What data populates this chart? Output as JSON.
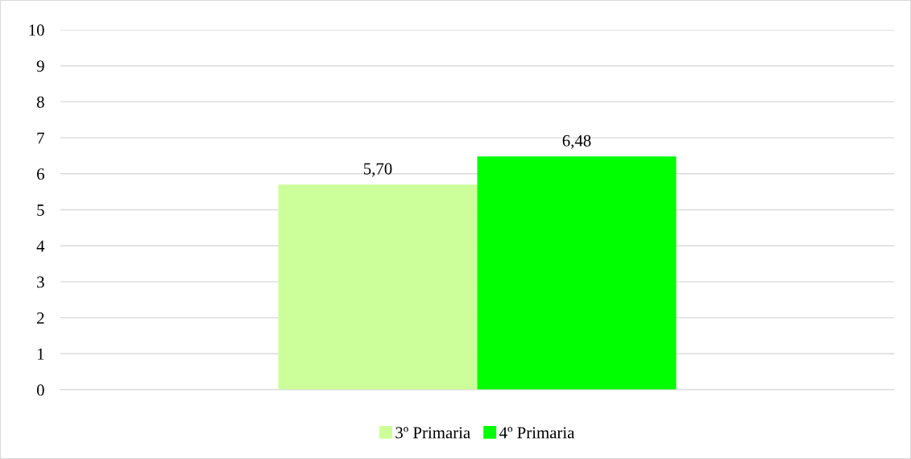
{
  "chart_data": {
    "type": "bar",
    "categories": [
      null
    ],
    "series": [
      {
        "name": "3º Primaria",
        "color": "#ccff99",
        "values": [
          5.7
        ],
        "value_labels": [
          "5,70"
        ]
      },
      {
        "name": "4º Primaria",
        "color": "#00ff00",
        "values": [
          6.48
        ],
        "value_labels": [
          "6,48"
        ]
      }
    ],
    "ylim": [
      0,
      10
    ],
    "yticks": [
      0,
      1,
      2,
      3,
      4,
      5,
      6,
      7,
      8,
      9,
      10
    ],
    "grid": "y",
    "legend": "bottom",
    "tick_labels": "y"
  }
}
